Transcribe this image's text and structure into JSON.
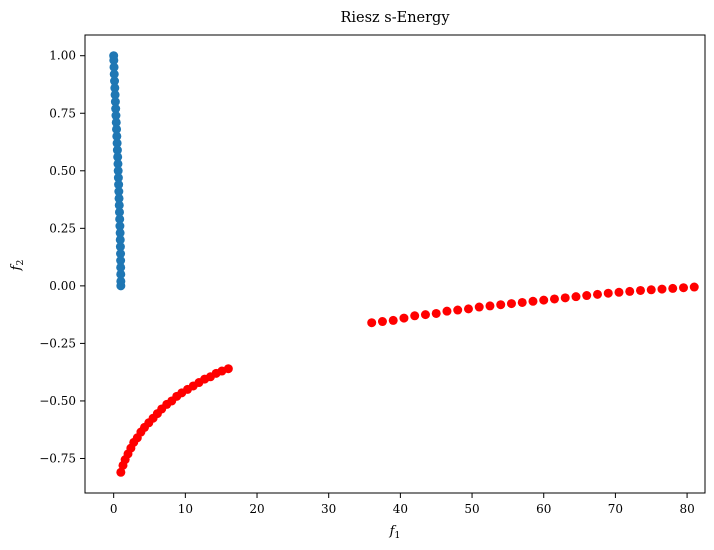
{
  "chart_data": {
    "type": "scatter",
    "title": "Riesz s-Energy",
    "xlabel": "f",
    "xlabel_sub": "1",
    "ylabel": "f",
    "ylabel_sub": "2",
    "xlim": [
      -4,
      82.5
    ],
    "ylim": [
      -0.9,
      1.09
    ],
    "xticks": [
      0,
      10,
      20,
      30,
      40,
      50,
      60,
      70,
      80
    ],
    "xtick_labels": [
      "0",
      "10",
      "20",
      "30",
      "40",
      "50",
      "60",
      "70",
      "80"
    ],
    "yticks": [
      -0.75,
      -0.5,
      -0.25,
      0.0,
      0.25,
      0.5,
      0.75,
      1.0
    ],
    "ytick_labels": [
      "−0.75",
      "−0.50",
      "−0.25",
      "0.00",
      "0.25",
      "0.50",
      "0.75",
      "1.00"
    ],
    "grid": false,
    "series": [
      {
        "color": "#1f77b4",
        "points": [
          [
            0.0,
            1.0
          ],
          [
            0.02,
            0.98
          ],
          [
            0.05,
            0.95
          ],
          [
            0.08,
            0.92
          ],
          [
            0.12,
            0.89
          ],
          [
            0.16,
            0.86
          ],
          [
            0.2,
            0.83
          ],
          [
            0.24,
            0.8
          ],
          [
            0.28,
            0.77
          ],
          [
            0.32,
            0.74
          ],
          [
            0.36,
            0.71
          ],
          [
            0.4,
            0.68
          ],
          [
            0.44,
            0.65
          ],
          [
            0.48,
            0.62
          ],
          [
            0.52,
            0.59
          ],
          [
            0.56,
            0.56
          ],
          [
            0.6,
            0.53
          ],
          [
            0.63,
            0.5
          ],
          [
            0.66,
            0.47
          ],
          [
            0.69,
            0.44
          ],
          [
            0.72,
            0.41
          ],
          [
            0.75,
            0.38
          ],
          [
            0.78,
            0.35
          ],
          [
            0.81,
            0.32
          ],
          [
            0.84,
            0.29
          ],
          [
            0.87,
            0.26
          ],
          [
            0.9,
            0.23
          ],
          [
            0.92,
            0.2
          ],
          [
            0.94,
            0.17
          ],
          [
            0.96,
            0.14
          ],
          [
            0.97,
            0.11
          ],
          [
            0.98,
            0.08
          ],
          [
            0.99,
            0.05
          ],
          [
            1.0,
            0.02
          ],
          [
            1.0,
            0.0
          ]
        ]
      },
      {
        "color": "#ff0000",
        "points": [
          [
            1.0,
            -0.81
          ],
          [
            1.3,
            -0.78
          ],
          [
            1.6,
            -0.755
          ],
          [
            2.0,
            -0.73
          ],
          [
            2.4,
            -0.705
          ],
          [
            2.8,
            -0.68
          ],
          [
            3.3,
            -0.66
          ],
          [
            3.8,
            -0.635
          ],
          [
            4.3,
            -0.615
          ],
          [
            4.9,
            -0.595
          ],
          [
            5.5,
            -0.575
          ],
          [
            6.1,
            -0.555
          ],
          [
            6.7,
            -0.535
          ],
          [
            7.4,
            -0.515
          ],
          [
            8.1,
            -0.5
          ],
          [
            8.8,
            -0.48
          ],
          [
            9.5,
            -0.465
          ],
          [
            10.3,
            -0.45
          ],
          [
            11.1,
            -0.435
          ],
          [
            11.9,
            -0.42
          ],
          [
            12.7,
            -0.405
          ],
          [
            13.5,
            -0.395
          ],
          [
            14.3,
            -0.38
          ],
          [
            15.1,
            -0.37
          ],
          [
            16.0,
            -0.36
          ],
          [
            36.0,
            -0.16
          ],
          [
            37.5,
            -0.155
          ],
          [
            39.0,
            -0.15
          ],
          [
            40.5,
            -0.14
          ],
          [
            42.0,
            -0.13
          ],
          [
            43.5,
            -0.125
          ],
          [
            45.0,
            -0.12
          ],
          [
            46.5,
            -0.11
          ],
          [
            48.0,
            -0.105
          ],
          [
            49.5,
            -0.1
          ],
          [
            51.0,
            -0.092
          ],
          [
            52.5,
            -0.087
          ],
          [
            54.0,
            -0.082
          ],
          [
            55.5,
            -0.077
          ],
          [
            57.0,
            -0.072
          ],
          [
            58.5,
            -0.067
          ],
          [
            60.0,
            -0.062
          ],
          [
            61.5,
            -0.057
          ],
          [
            63.0,
            -0.052
          ],
          [
            64.5,
            -0.047
          ],
          [
            66.0,
            -0.042
          ],
          [
            67.5,
            -0.037
          ],
          [
            69.0,
            -0.032
          ],
          [
            70.5,
            -0.028
          ],
          [
            72.0,
            -0.024
          ],
          [
            73.5,
            -0.02
          ],
          [
            75.0,
            -0.017
          ],
          [
            76.5,
            -0.014
          ],
          [
            78.0,
            -0.011
          ],
          [
            79.5,
            -0.008
          ],
          [
            81.0,
            -0.005
          ]
        ]
      }
    ]
  }
}
